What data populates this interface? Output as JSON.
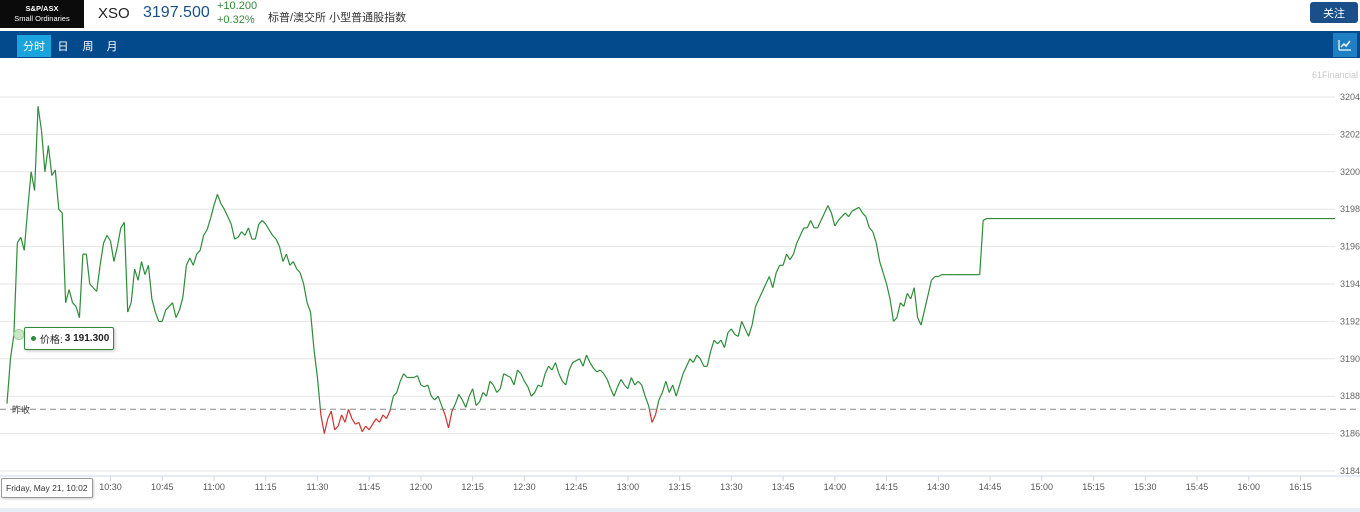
{
  "header": {
    "logo_line1": "S&P/ASX",
    "logo_line2": "Small Ordinaries",
    "symbol": "XSO",
    "price": "3197.500",
    "change_abs": "+10.200",
    "change_pct": "+0.32%",
    "name": "标普/澳交所 小型普通股指数",
    "follow_label": "关注"
  },
  "tabs": [
    {
      "label": "分时",
      "active": true
    },
    {
      "label": "日",
      "active": false
    },
    {
      "label": "周",
      "active": false
    },
    {
      "label": "月",
      "active": false
    }
  ],
  "watermark": "61Financial",
  "tooltip": {
    "label": "价格:",
    "value": "3 191.300"
  },
  "crosshair_label": "Friday, May 21, 10:02",
  "prev_close_label": "昨收",
  "colors": {
    "up": "#2e8b3a",
    "down": "#d03030",
    "navbar": "#024a8c",
    "active_tab": "#1aa3dc",
    "button": "#1a4f8a"
  },
  "chart_data": {
    "type": "line",
    "prev_close": 3187.3,
    "ylim": [
      3184,
      3205
    ],
    "y_ticks": [
      3184,
      3186,
      3188,
      3190,
      3192,
      3194,
      3196,
      3198,
      3200,
      3202,
      3204
    ],
    "x_range": [
      "10:00",
      "16:25"
    ],
    "x_ticks": [
      "10:30",
      "10:45",
      "11:00",
      "11:15",
      "11:30",
      "11:45",
      "12:00",
      "12:15",
      "12:30",
      "12:45",
      "13:00",
      "13:15",
      "13:30",
      "13:45",
      "14:00",
      "14:15",
      "14:30",
      "14:45",
      "15:00",
      "15:15",
      "15:30",
      "15:45",
      "16:00",
      "16:15"
    ],
    "grid": "horizontal",
    "points": [
      [
        "10:00",
        3187.6
      ],
      [
        "10:01",
        3190.0
      ],
      [
        "10:02",
        3191.3
      ],
      [
        "10:03",
        3196.2
      ],
      [
        "10:04",
        3196.5
      ],
      [
        "10:05",
        3195.8
      ],
      [
        "10:06",
        3198.0
      ],
      [
        "10:07",
        3200.0
      ],
      [
        "10:08",
        3199.0
      ],
      [
        "10:09",
        3203.5
      ],
      [
        "10:10",
        3202.2
      ],
      [
        "10:11",
        3200.0
      ],
      [
        "10:12",
        3201.4
      ],
      [
        "10:13",
        3199.8
      ],
      [
        "10:14",
        3200.1
      ],
      [
        "10:15",
        3198.0
      ],
      [
        "10:16",
        3197.8
      ],
      [
        "10:17",
        3193.0
      ],
      [
        "10:18",
        3193.7
      ],
      [
        "10:19",
        3193.0
      ],
      [
        "10:20",
        3192.8
      ],
      [
        "10:21",
        3192.2
      ],
      [
        "10:22",
        3195.6
      ],
      [
        "10:23",
        3195.6
      ],
      [
        "10:24",
        3194.0
      ],
      [
        "10:25",
        3193.8
      ],
      [
        "10:26",
        3193.6
      ],
      [
        "10:27",
        3195.0
      ],
      [
        "10:28",
        3196.2
      ],
      [
        "10:29",
        3196.6
      ],
      [
        "10:30",
        3196.3
      ],
      [
        "10:31",
        3195.2
      ],
      [
        "10:32",
        3196.0
      ],
      [
        "10:33",
        3197.0
      ],
      [
        "10:34",
        3197.3
      ],
      [
        "10:35",
        3192.5
      ],
      [
        "10:36",
        3193.0
      ],
      [
        "10:37",
        3194.8
      ],
      [
        "10:38",
        3194.2
      ],
      [
        "10:39",
        3195.2
      ],
      [
        "10:40",
        3194.5
      ],
      [
        "10:41",
        3195.0
      ],
      [
        "10:42",
        3193.2
      ],
      [
        "10:43",
        3192.5
      ],
      [
        "10:44",
        3192.0
      ],
      [
        "10:45",
        3192.0
      ],
      [
        "10:46",
        3192.6
      ],
      [
        "10:47",
        3192.8
      ],
      [
        "10:48",
        3193.0
      ],
      [
        "10:49",
        3192.2
      ],
      [
        "10:50",
        3192.6
      ],
      [
        "10:51",
        3193.3
      ],
      [
        "10:52",
        3195.0
      ],
      [
        "10:53",
        3195.4
      ],
      [
        "10:54",
        3195.0
      ],
      [
        "10:55",
        3195.6
      ],
      [
        "10:56",
        3195.8
      ],
      [
        "10:57",
        3196.6
      ],
      [
        "10:58",
        3196.9
      ],
      [
        "10:59",
        3197.5
      ],
      [
        "11:00",
        3198.2
      ],
      [
        "11:01",
        3198.8
      ],
      [
        "11:02",
        3198.3
      ],
      [
        "11:03",
        3198.0
      ],
      [
        "11:04",
        3197.6
      ],
      [
        "11:05",
        3197.2
      ],
      [
        "11:06",
        3196.4
      ],
      [
        "11:07",
        3196.5
      ],
      [
        "11:08",
        3196.8
      ],
      [
        "11:09",
        3196.6
      ],
      [
        "11:10",
        3197.0
      ],
      [
        "11:11",
        3196.4
      ],
      [
        "11:12",
        3196.4
      ],
      [
        "11:13",
        3197.2
      ],
      [
        "11:14",
        3197.4
      ],
      [
        "11:15",
        3197.2
      ],
      [
        "11:16",
        3196.9
      ],
      [
        "11:17",
        3196.6
      ],
      [
        "11:18",
        3196.4
      ],
      [
        "11:19",
        3196.0
      ],
      [
        "11:20",
        3195.2
      ],
      [
        "11:21",
        3195.6
      ],
      [
        "11:22",
        3195.0
      ],
      [
        "11:23",
        3195.2
      ],
      [
        "11:24",
        3194.8
      ],
      [
        "11:25",
        3194.6
      ],
      [
        "11:26",
        3194.0
      ],
      [
        "11:27",
        3193.0
      ],
      [
        "11:28",
        3192.5
      ],
      [
        "11:29",
        3190.5
      ],
      [
        "11:30",
        3189.0
      ],
      [
        "11:31",
        3187.0
      ],
      [
        "11:32",
        3186.0
      ],
      [
        "11:33",
        3186.8
      ],
      [
        "11:34",
        3187.2
      ],
      [
        "11:35",
        3186.2
      ],
      [
        "11:36",
        3186.4
      ],
      [
        "11:37",
        3187.0
      ],
      [
        "11:38",
        3186.6
      ],
      [
        "11:39",
        3187.3
      ],
      [
        "11:40",
        3186.8
      ],
      [
        "11:41",
        3186.5
      ],
      [
        "11:42",
        3186.6
      ],
      [
        "11:43",
        3186.1
      ],
      [
        "11:44",
        3186.4
      ],
      [
        "11:45",
        3186.2
      ],
      [
        "11:46",
        3186.5
      ],
      [
        "11:47",
        3186.8
      ],
      [
        "11:48",
        3186.6
      ],
      [
        "11:49",
        3187.0
      ],
      [
        "11:50",
        3186.8
      ],
      [
        "11:51",
        3187.2
      ],
      [
        "11:52",
        3188.0
      ],
      [
        "11:53",
        3188.2
      ],
      [
        "11:54",
        3188.8
      ],
      [
        "11:55",
        3189.2
      ],
      [
        "11:56",
        3189.0
      ],
      [
        "11:57",
        3189.0
      ],
      [
        "11:58",
        3189.0
      ],
      [
        "11:59",
        3189.1
      ],
      [
        "12:00",
        3188.6
      ],
      [
        "12:01",
        3188.5
      ],
      [
        "12:02",
        3188.6
      ],
      [
        "12:03",
        3188.0
      ],
      [
        "12:04",
        3187.8
      ],
      [
        "12:05",
        3188.0
      ],
      [
        "12:06",
        3187.5
      ],
      [
        "12:07",
        3187.0
      ],
      [
        "12:08",
        3186.3
      ],
      [
        "12:09",
        3187.2
      ],
      [
        "12:10",
        3187.6
      ],
      [
        "12:11",
        3188.1
      ],
      [
        "12:12",
        3187.8
      ],
      [
        "12:13",
        3187.4
      ],
      [
        "12:14",
        3188.0
      ],
      [
        "12:15",
        3188.4
      ],
      [
        "12:16",
        3187.5
      ],
      [
        "12:17",
        3187.7
      ],
      [
        "12:18",
        3188.2
      ],
      [
        "12:19",
        3188.0
      ],
      [
        "12:20",
        3188.8
      ],
      [
        "12:21",
        3188.6
      ],
      [
        "12:22",
        3188.2
      ],
      [
        "12:23",
        3188.4
      ],
      [
        "12:24",
        3189.2
      ],
      [
        "12:25",
        3189.1
      ],
      [
        "12:26",
        3189.0
      ],
      [
        "12:27",
        3188.6
      ],
      [
        "12:28",
        3189.4
      ],
      [
        "12:29",
        3189.2
      ],
      [
        "12:30",
        3188.8
      ],
      [
        "12:31",
        3188.5
      ],
      [
        "12:32",
        3188.0
      ],
      [
        "12:33",
        3188.2
      ],
      [
        "12:34",
        3188.6
      ],
      [
        "12:35",
        3188.5
      ],
      [
        "12:36",
        3189.2
      ],
      [
        "12:37",
        3189.6
      ],
      [
        "12:38",
        3189.4
      ],
      [
        "12:39",
        3189.8
      ],
      [
        "12:40",
        3189.2
      ],
      [
        "12:41",
        3188.8
      ],
      [
        "12:42",
        3188.6
      ],
      [
        "12:43",
        3189.4
      ],
      [
        "12:44",
        3189.8
      ],
      [
        "12:45",
        3189.9
      ],
      [
        "12:46",
        3190.0
      ],
      [
        "12:47",
        3189.6
      ],
      [
        "12:48",
        3190.2
      ],
      [
        "12:49",
        3189.8
      ],
      [
        "12:50",
        3189.5
      ],
      [
        "12:51",
        3189.3
      ],
      [
        "12:52",
        3189.4
      ],
      [
        "12:53",
        3189.2
      ],
      [
        "12:54",
        3188.9
      ],
      [
        "12:55",
        3188.4
      ],
      [
        "12:56",
        3188.0
      ],
      [
        "12:57",
        3188.5
      ],
      [
        "12:58",
        3188.9
      ],
      [
        "12:59",
        3188.6
      ],
      [
        "13:00",
        3188.4
      ],
      [
        "13:01",
        3189.0
      ],
      [
        "13:02",
        3188.6
      ],
      [
        "13:03",
        3188.8
      ],
      [
        "13:04",
        3188.6
      ],
      [
        "13:05",
        3188.0
      ],
      [
        "13:06",
        3187.5
      ],
      [
        "13:07",
        3186.6
      ],
      [
        "13:08",
        3187.0
      ],
      [
        "13:09",
        3187.8
      ],
      [
        "13:10",
        3188.2
      ],
      [
        "13:11",
        3188.8
      ],
      [
        "13:12",
        3188.2
      ],
      [
        "13:13",
        3188.6
      ],
      [
        "13:14",
        3188.0
      ],
      [
        "13:15",
        3188.6
      ],
      [
        "13:16",
        3189.2
      ],
      [
        "13:17",
        3189.6
      ],
      [
        "13:18",
        3190.0
      ],
      [
        "13:19",
        3189.8
      ],
      [
        "13:20",
        3190.2
      ],
      [
        "13:21",
        3190.0
      ],
      [
        "13:22",
        3189.6
      ],
      [
        "13:23",
        3189.6
      ],
      [
        "13:24",
        3190.4
      ],
      [
        "13:25",
        3191.0
      ],
      [
        "13:26",
        3190.8
      ],
      [
        "13:27",
        3191.0
      ],
      [
        "13:28",
        3190.6
      ],
      [
        "13:29",
        3191.4
      ],
      [
        "13:30",
        3191.6
      ],
      [
        "13:31",
        3191.3
      ],
      [
        "13:32",
        3191.2
      ],
      [
        "13:33",
        3192.0
      ],
      [
        "13:34",
        3191.6
      ],
      [
        "13:35",
        3191.2
      ],
      [
        "13:36",
        3191.8
      ],
      [
        "13:37",
        3192.8
      ],
      [
        "13:38",
        3193.2
      ],
      [
        "13:39",
        3193.6
      ],
      [
        "13:40",
        3194.0
      ],
      [
        "13:41",
        3194.4
      ],
      [
        "13:42",
        3193.8
      ],
      [
        "13:43",
        3194.6
      ],
      [
        "13:44",
        3195.0
      ],
      [
        "13:45",
        3195.0
      ],
      [
        "13:46",
        3195.6
      ],
      [
        "13:47",
        3195.3
      ],
      [
        "13:48",
        3195.6
      ],
      [
        "13:49",
        3196.2
      ],
      [
        "13:50",
        3196.6
      ],
      [
        "13:51",
        3197.0
      ],
      [
        "13:52",
        3197.0
      ],
      [
        "13:53",
        3197.4
      ],
      [
        "13:54",
        3197.0
      ],
      [
        "13:55",
        3197.0
      ],
      [
        "13:56",
        3197.4
      ],
      [
        "13:57",
        3197.8
      ],
      [
        "13:58",
        3198.2
      ],
      [
        "13:59",
        3197.8
      ],
      [
        "14:00",
        3197.1
      ],
      [
        "14:01",
        3197.4
      ],
      [
        "14:02",
        3197.6
      ],
      [
        "14:03",
        3197.8
      ],
      [
        "14:04",
        3197.6
      ],
      [
        "14:05",
        3197.9
      ],
      [
        "14:06",
        3198.0
      ],
      [
        "14:07",
        3198.1
      ],
      [
        "14:08",
        3197.8
      ],
      [
        "14:09",
        3197.6
      ],
      [
        "14:10",
        3197.0
      ],
      [
        "14:11",
        3196.8
      ],
      [
        "14:12",
        3196.2
      ],
      [
        "14:13",
        3195.2
      ],
      [
        "14:14",
        3194.6
      ],
      [
        "14:15",
        3194.0
      ],
      [
        "14:16",
        3193.2
      ],
      [
        "14:17",
        3192.0
      ],
      [
        "14:18",
        3192.2
      ],
      [
        "14:19",
        3193.0
      ],
      [
        "14:20",
        3192.8
      ],
      [
        "14:21",
        3193.5
      ],
      [
        "14:22",
        3193.2
      ],
      [
        "14:23",
        3193.8
      ],
      [
        "14:24",
        3192.2
      ],
      [
        "14:25",
        3191.8
      ],
      [
        "14:26",
        3192.6
      ],
      [
        "14:27",
        3193.4
      ],
      [
        "14:28",
        3194.2
      ],
      [
        "14:29",
        3194.4
      ],
      [
        "14:30",
        3194.4
      ],
      [
        "14:31",
        3194.5
      ],
      [
        "14:32",
        3194.5
      ],
      [
        "14:33",
        3194.5
      ],
      [
        "14:34",
        3194.5
      ],
      [
        "14:35",
        3194.5
      ],
      [
        "14:36",
        3194.5
      ],
      [
        "14:37",
        3194.5
      ],
      [
        "14:38",
        3194.5
      ],
      [
        "14:39",
        3194.5
      ],
      [
        "14:40",
        3194.5
      ],
      [
        "14:41",
        3194.5
      ],
      [
        "14:42",
        3194.5
      ],
      [
        "14:43",
        3197.4
      ],
      [
        "14:44",
        3197.5
      ],
      [
        "16:25",
        3197.5
      ]
    ]
  }
}
